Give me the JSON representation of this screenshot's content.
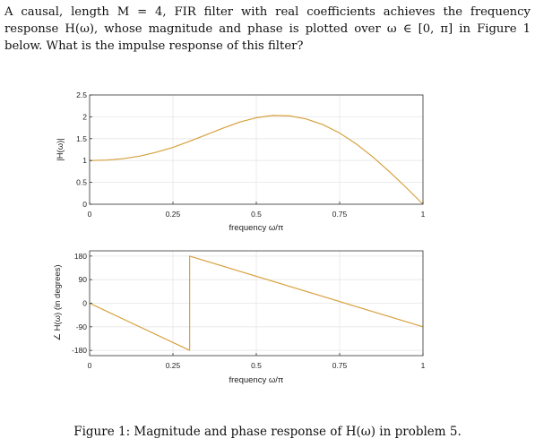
{
  "problem": {
    "text": "A causal, length M = 4, FIR filter with real coefficients achieves the frequency response H(ω), whose magnitude and phase is plotted over ω ∈ [0, π] in Figure 1 below. What is the impulse response of this filter?"
  },
  "caption": "Figure 1: Magnitude and phase response of H(ω) in problem 5.",
  "colors": {
    "line": "#d6a13d",
    "axis": "#333333",
    "grid": "#e6e6e6"
  },
  "chart_data": [
    {
      "type": "line",
      "xlabel": "frequency ω/π",
      "ylabel": "|H(ω)|",
      "xlim": [
        0,
        1
      ],
      "ylim": [
        0,
        2.5
      ],
      "xticks": [
        0,
        0.25,
        0.5,
        0.75,
        1
      ],
      "xtick_labels": [
        "0",
        "0.25",
        "0.5",
        "0.75",
        "1"
      ],
      "yticks": [
        0,
        0.5,
        1,
        1.5,
        2,
        2.5
      ],
      "ytick_labels": [
        "0",
        "0.5",
        "1",
        "1.5",
        "2",
        "2.5"
      ],
      "grid": true,
      "series": [
        {
          "x": [
            0,
            0.05,
            0.1,
            0.15,
            0.2,
            0.25,
            0.3,
            0.35,
            0.4,
            0.45,
            0.5,
            0.55,
            0.6,
            0.65,
            0.7,
            0.75,
            0.8,
            0.85,
            0.9,
            0.95,
            1
          ],
          "y": [
            1.0,
            1.01,
            1.04,
            1.1,
            1.19,
            1.3,
            1.44,
            1.59,
            1.74,
            1.88,
            1.98,
            2.03,
            2.02,
            1.95,
            1.82,
            1.63,
            1.38,
            1.08,
            0.74,
            0.38,
            0.0
          ]
        }
      ]
    },
    {
      "type": "line",
      "xlabel": "frequency ω/π",
      "ylabel": "∠ H(ω) (in degrees)",
      "xlim": [
        0,
        1
      ],
      "ylim": [
        -200,
        200
      ],
      "xticks": [
        0,
        0.25,
        0.5,
        0.75,
        1
      ],
      "xtick_labels": [
        "0",
        "0.25",
        "0.5",
        "0.75",
        "1"
      ],
      "yticks": [
        -180,
        -90,
        0,
        90,
        180
      ],
      "ytick_labels": [
        "-180",
        "-90",
        "0",
        "90",
        "180"
      ],
      "grid": true,
      "series": [
        {
          "x": [
            0,
            0.3,
            0.3,
            1.0
          ],
          "y": [
            0,
            -180,
            180,
            -90
          ]
        }
      ]
    }
  ]
}
